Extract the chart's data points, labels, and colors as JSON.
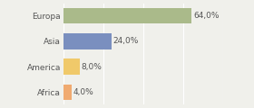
{
  "categories": [
    "Europa",
    "Asia",
    "America",
    "Africa"
  ],
  "values": [
    64.0,
    24.0,
    8.0,
    4.0
  ],
  "bar_colors": [
    "#aaba8a",
    "#7a8fbf",
    "#f0c96a",
    "#f0aa70"
  ],
  "labels": [
    "64,0%",
    "24,0%",
    "8,0%",
    "4,0%"
  ],
  "background_color": "#f0f0eb",
  "xlim": [
    0,
    80
  ],
  "bar_height": 0.62,
  "label_fontsize": 6.5,
  "tick_fontsize": 6.5,
  "figsize": [
    2.8,
    1.2
  ],
  "dpi": 100
}
